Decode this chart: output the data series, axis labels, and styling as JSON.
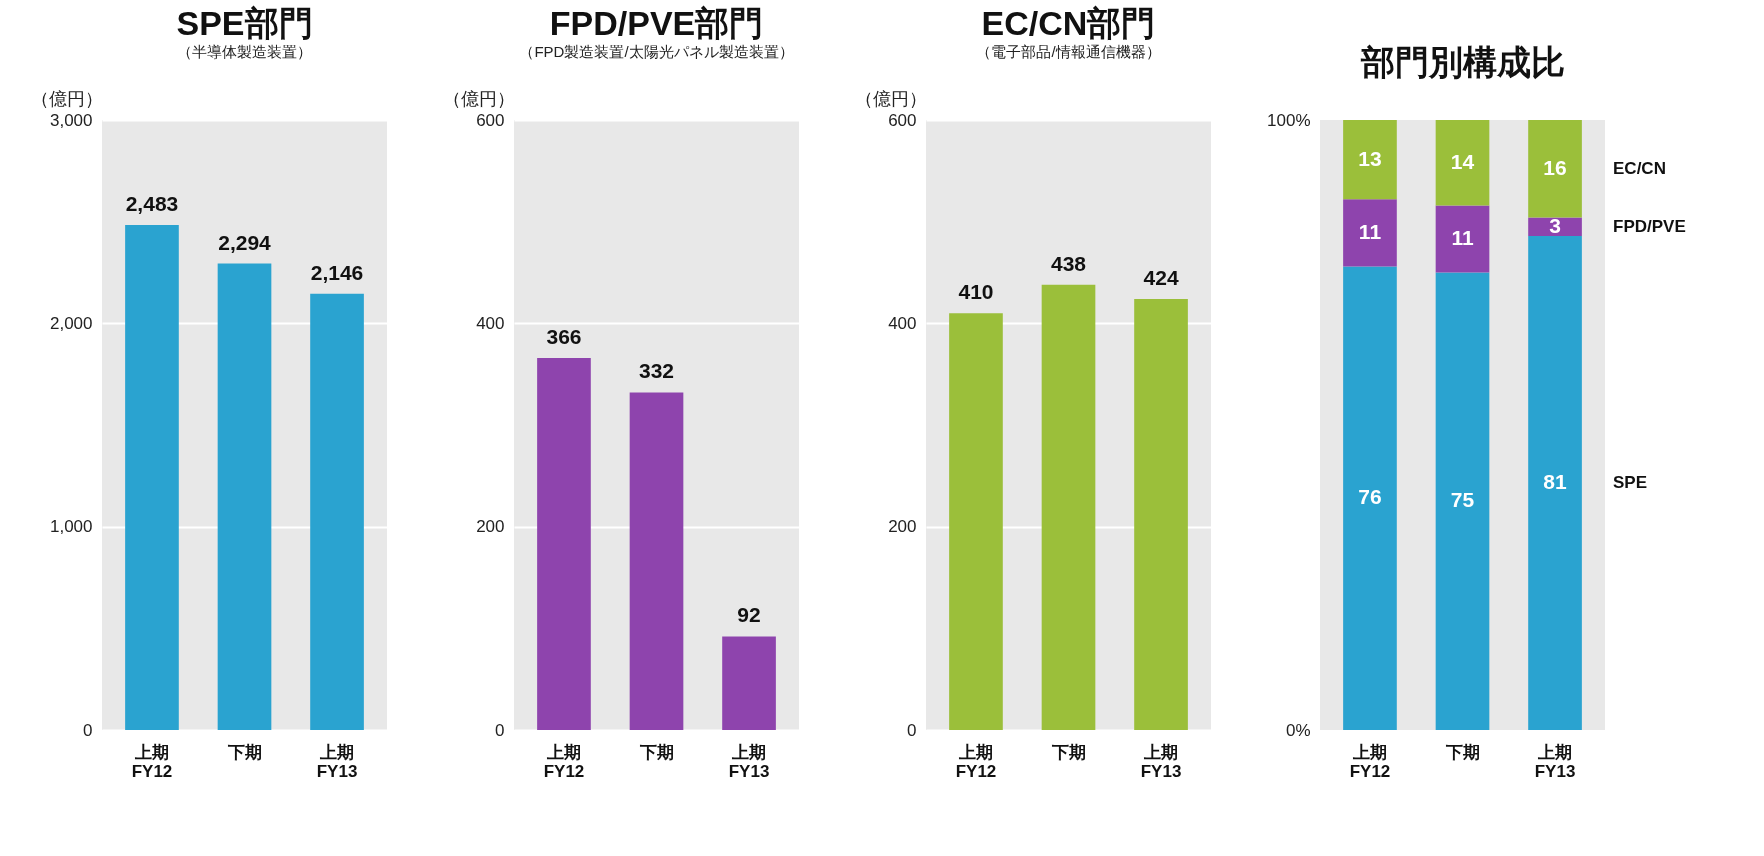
{
  "chart_data": [
    {
      "type": "bar",
      "title": "SPE部門",
      "subtitle": "（半導体製造装置）",
      "ylabel": "（億円）",
      "categories": [
        "上期\nFY12",
        "下期",
        "上期\nFY13"
      ],
      "values": [
        2483,
        2294,
        2146
      ],
      "color": "#2aa3d0",
      "value_labels": [
        "2,483",
        "2,294",
        "2,146"
      ],
      "ylim": [
        0,
        3000
      ],
      "yticks": [
        {
          "value": 0,
          "label": "0"
        },
        {
          "value": 1000,
          "label": "1,000"
        },
        {
          "value": 2000,
          "label": "2,000"
        },
        {
          "value": 3000,
          "label": "3,000"
        }
      ],
      "grid": "y"
    },
    {
      "type": "bar",
      "title": "FPD/PVE部門",
      "subtitle": "（FPD製造装置/太陽光パネル製造装置）",
      "ylabel": "（億円）",
      "categories": [
        "上期\nFY12",
        "下期",
        "上期\nFY13"
      ],
      "values": [
        366,
        332,
        92
      ],
      "color": "#8e44ad",
      "data_labels": true,
      "ylim": [
        0,
        600
      ],
      "yticks": [
        0,
        200,
        400,
        600
      ],
      "grid": "y"
    },
    {
      "type": "bar",
      "title": "EC/CN部門",
      "subtitle": "（電子部品/情報通信機器）",
      "ylabel": "（億円）",
      "categories": [
        "上期\nFY12",
        "下期",
        "上期\nFY13"
      ],
      "values": [
        410,
        438,
        424
      ],
      "color": "#9bbf3a",
      "data_labels": true,
      "ylim": [
        0,
        600
      ],
      "yticks": [
        0,
        200,
        400,
        600
      ],
      "grid": "y"
    },
    {
      "type": "bar",
      "stacked": true,
      "title": "部門別構成比",
      "categories": [
        "上期\nFY12",
        "下期",
        "上期\nFY13"
      ],
      "data_labels": true,
      "ylim": [
        0,
        100
      ],
      "yticks": [
        {
          "value": 0,
          "label": "0%"
        },
        {
          "value": 100,
          "label": "100%"
        }
      ],
      "series": [
        {
          "name": "SPE",
          "color": "#2aa3d0",
          "values": [
            76,
            75,
            81
          ]
        },
        {
          "name": "FPD/PVE",
          "color": "#8e44ad",
          "values": [
            11,
            11,
            3
          ]
        },
        {
          "name": "EC/CN",
          "color": "#9bbf3a",
          "values": [
            13,
            14,
            16
          ]
        }
      ]
    }
  ]
}
